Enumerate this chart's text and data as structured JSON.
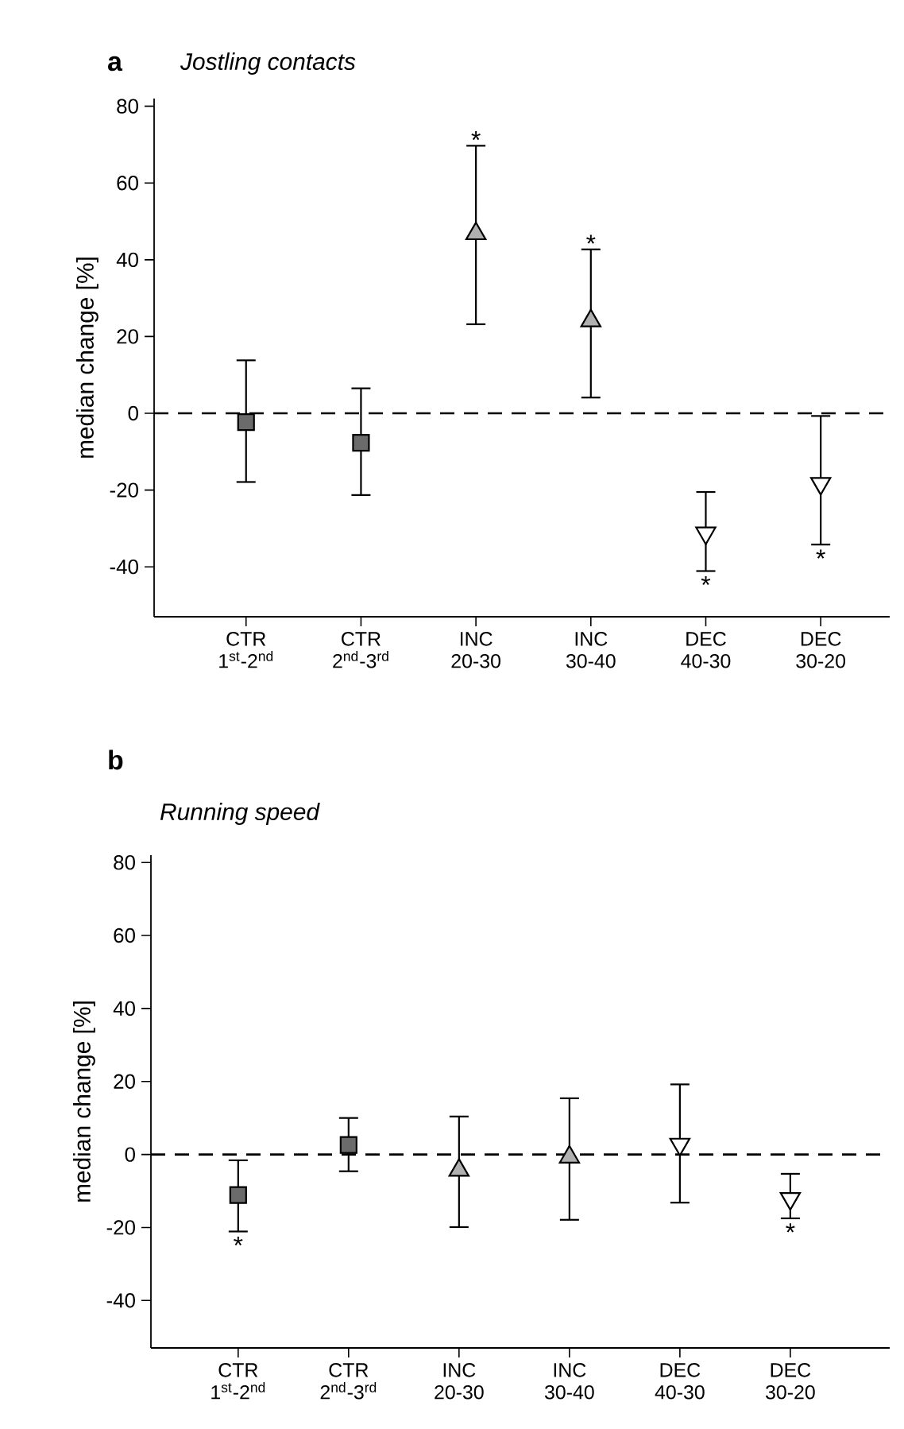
{
  "chart_data": [
    {
      "type": "scatter",
      "title": "a",
      "subtitle": "Jostling contacts",
      "ylabel": "median change [%]",
      "categories": [
        "CTR 1$^{st}$-2$^{nd}$",
        "CTR 2$^{nd}$-3$^{rd}$",
        "INC 20-30",
        "INC 30-40",
        "DEC 40-30",
        "DEC 30-20"
      ],
      "series": [
        {
          "color": "#6b6b6b",
          "marker": "square",
          "values": [
            -2.3,
            -7.7,
            null,
            null,
            null,
            null
          ],
          "errors": [
            [
              -17.9,
              13.8
            ],
            [
              -21.3,
              6.5
            ],
            null,
            null,
            null,
            null
          ]
        },
        {
          "color": "#b0b0b0",
          "marker": "triangle",
          "values": [
            null,
            null,
            46.8,
            24.1,
            null,
            null
          ],
          "errors": [
            null,
            null,
            [
              23.2,
              69.7
            ],
            [
              4.1,
              42.7
            ],
            null,
            null
          ]
        },
        {
          "color": "#ffffff",
          "marker": "triangle-down",
          "values": [
            null,
            null,
            null,
            null,
            -31.2,
            -18.3
          ],
          "errors": [
            null,
            null,
            null,
            null,
            [
              -41.1,
              -20.5
            ],
            [
              -34.2,
              -0.7
            ]
          ]
        }
      ],
      "ylim": [
        -53,
        82
      ],
      "yticks": [
        -40,
        -20,
        0,
        20,
        40,
        60,
        80
      ],
      "ref_lines": [
        {
          "axis": "y",
          "value": 0,
          "line_style": "dashed"
        }
      ],
      "annotations": [
        {
          "text": "*",
          "x": "INC 20-30",
          "y": 69.7
        },
        {
          "text": "*",
          "x": "INC 30-40",
          "y": 42.7
        },
        {
          "text": "*",
          "x": "DEC 40-30",
          "y": -41.1
        },
        {
          "text": "*",
          "x": "DEC 30-20",
          "y": -34.2
        }
      ]
    },
    {
      "type": "scatter",
      "title": "b",
      "subtitle": "Running speed",
      "ylabel": "median change [%]",
      "categories": [
        "CTR 1$^{st}$-2$^{nd}$",
        "CTR 2$^{nd}$-3$^{rd}$",
        "INC 20-30",
        "INC 30-40",
        "DEC 40-30",
        "DEC 30-20"
      ],
      "series": [
        {
          "color": "#6b6b6b",
          "marker": "square",
          "values": [
            -11.1,
            2.6,
            null,
            null,
            null,
            null
          ],
          "errors": [
            [
              -21.1,
              -1.6
            ],
            [
              -4.6,
              10.0
            ],
            null,
            null,
            null,
            null
          ]
        },
        {
          "color": "#b0b0b0",
          "marker": "triangle",
          "values": [
            null,
            null,
            -4.3,
            -0.7,
            null,
            null
          ],
          "errors": [
            null,
            null,
            [
              -19.9,
              10.4
            ],
            [
              -17.9,
              15.4
            ],
            null,
            null
          ]
        },
        {
          "color": "#ffffff",
          "marker": "triangle-down",
          "values": [
            null,
            null,
            null,
            null,
            2.8,
            -12.1
          ],
          "errors": [
            null,
            null,
            null,
            null,
            [
              -13.2,
              19.2
            ],
            [
              -17.5,
              -5.3
            ]
          ]
        }
      ],
      "ylim": [
        -53,
        82
      ],
      "yticks": [
        -40,
        -20,
        0,
        20,
        40,
        60,
        80
      ],
      "ref_lines": [
        {
          "axis": "y",
          "value": 0,
          "line_style": "dashed"
        }
      ],
      "annotations": [
        {
          "text": "*",
          "x": "CTR 1$^{st}$-2$^{nd}$",
          "y": -21.1
        },
        {
          "text": "*",
          "x": "DEC 30-20",
          "y": -17.5
        }
      ]
    }
  ]
}
